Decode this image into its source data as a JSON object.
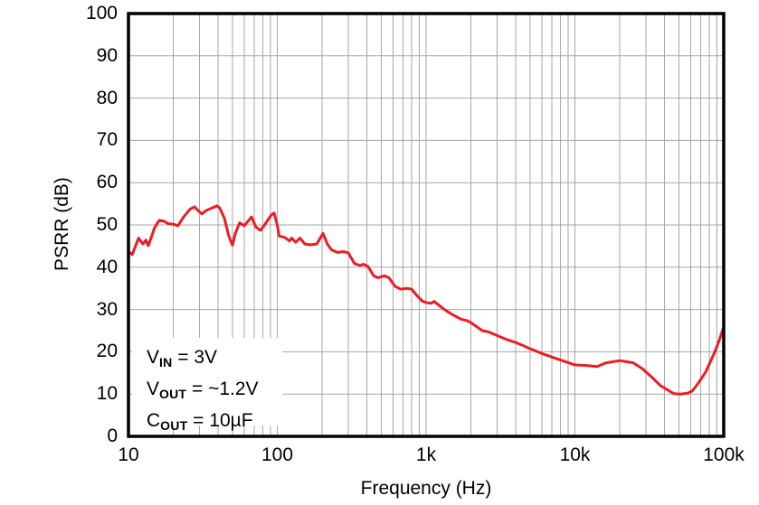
{
  "chart_data": {
    "type": "line",
    "title": "",
    "xlabel": "Frequency (Hz)",
    "ylabel": "PSRR (dB)",
    "x_scale": "log",
    "xlim": [
      10,
      100000
    ],
    "ylim": [
      0,
      100
    ],
    "grid": {
      "on": true,
      "color": "#A6A6A6",
      "minor_x": true,
      "major_y_step": 10
    },
    "axis_color": "#000000",
    "x_ticks": [
      {
        "value": 10,
        "label": "10"
      },
      {
        "value": 100,
        "label": "100"
      },
      {
        "value": 1000,
        "label": "1k"
      },
      {
        "value": 10000,
        "label": "10k"
      },
      {
        "value": 100000,
        "label": "100k"
      }
    ],
    "y_ticks": [
      {
        "value": 0,
        "label": "0"
      },
      {
        "value": 10,
        "label": "10"
      },
      {
        "value": 20,
        "label": "20"
      },
      {
        "value": 30,
        "label": "30"
      },
      {
        "value": 40,
        "label": "40"
      },
      {
        "value": 50,
        "label": "50"
      },
      {
        "value": 60,
        "label": "60"
      },
      {
        "value": 70,
        "label": "70"
      },
      {
        "value": 80,
        "label": "80"
      },
      {
        "value": 90,
        "label": "90"
      },
      {
        "value": 100,
        "label": "100"
      }
    ],
    "series": [
      {
        "name": "PSRR",
        "color": "#ED1C24",
        "points": [
          [
            10,
            43.7
          ],
          [
            10.6,
            43.0
          ],
          [
            11.7,
            46.9
          ],
          [
            12.5,
            45.5
          ],
          [
            13.1,
            46.4
          ],
          [
            13.6,
            45.1
          ],
          [
            15,
            49.4
          ],
          [
            16.1,
            51.1
          ],
          [
            17.3,
            50.9
          ],
          [
            18.5,
            50.3
          ],
          [
            20,
            50.2
          ],
          [
            21.5,
            49.8
          ],
          [
            23.5,
            51.9
          ],
          [
            25.9,
            53.7
          ],
          [
            27.8,
            54.3
          ],
          [
            29.8,
            53.2
          ],
          [
            31.1,
            52.6
          ],
          [
            33.3,
            53.4
          ],
          [
            35.8,
            53.9
          ],
          [
            39.4,
            54.5
          ],
          [
            41.1,
            54.0
          ],
          [
            44.1,
            51.6
          ],
          [
            47.3,
            47.3
          ],
          [
            50,
            45.2
          ],
          [
            52.2,
            48.0
          ],
          [
            55.9,
            50.5
          ],
          [
            60,
            49.8
          ],
          [
            67.1,
            51.9
          ],
          [
            71.9,
            49.5
          ],
          [
            77.2,
            48.7
          ],
          [
            82.8,
            50.2
          ],
          [
            91.3,
            52.4
          ],
          [
            95.2,
            52.8
          ],
          [
            100,
            50.0
          ],
          [
            103,
            47.4
          ],
          [
            113,
            47.0
          ],
          [
            121,
            46.2
          ],
          [
            125,
            46.9
          ],
          [
            133,
            45.9
          ],
          [
            142,
            46.9
          ],
          [
            153,
            45.5
          ],
          [
            167,
            45.3
          ],
          [
            184,
            45.5
          ],
          [
            203,
            48.0
          ],
          [
            217,
            45.5
          ],
          [
            232,
            44.1
          ],
          [
            254,
            43.5
          ],
          [
            280,
            43.7
          ],
          [
            300,
            43.4
          ],
          [
            330,
            40.9
          ],
          [
            360,
            40.4
          ],
          [
            379,
            40.7
          ],
          [
            407,
            40.2
          ],
          [
            444,
            38.0
          ],
          [
            476,
            37.5
          ],
          [
            525,
            38.0
          ],
          [
            563,
            37.5
          ],
          [
            619,
            35.5
          ],
          [
            676,
            34.8
          ],
          [
            745,
            35.0
          ],
          [
            799,
            34.8
          ],
          [
            878,
            33.1
          ],
          [
            942,
            32.0
          ],
          [
            1010,
            31.6
          ],
          [
            1083,
            31.5
          ],
          [
            1134,
            31.9
          ],
          [
            1305,
            30.2
          ],
          [
            1500,
            28.8
          ],
          [
            1726,
            27.7
          ],
          [
            1878,
            27.4
          ],
          [
            2000,
            26.9
          ],
          [
            2280,
            25.5
          ],
          [
            2382,
            25.0
          ],
          [
            2627,
            24.7
          ],
          [
            3020,
            23.8
          ],
          [
            3475,
            22.9
          ],
          [
            4000,
            22.2
          ],
          [
            4598,
            21.3
          ],
          [
            5000,
            20.7
          ],
          [
            5289,
            20.4
          ],
          [
            6086,
            19.5
          ],
          [
            7507,
            18.4
          ],
          [
            10000,
            16.9
          ],
          [
            12250,
            16.7
          ],
          [
            14090,
            16.5
          ],
          [
            16210,
            17.4
          ],
          [
            20000,
            17.9
          ],
          [
            24660,
            17.4
          ],
          [
            28380,
            16.0
          ],
          [
            32640,
            14.1
          ],
          [
            37540,
            12.0
          ],
          [
            43180,
            10.7
          ],
          [
            46320,
            10.1
          ],
          [
            51080,
            10.0
          ],
          [
            57130,
            10.2
          ],
          [
            61270,
            10.7
          ],
          [
            65720,
            12.0
          ],
          [
            75600,
            15.2
          ],
          [
            86940,
            19.9
          ],
          [
            93240,
            22.7
          ],
          [
            100000,
            25.9
          ]
        ]
      }
    ],
    "annotations": [
      {
        "var": "V",
        "sub": "IN",
        "rest": " = 3V"
      },
      {
        "var": "V",
        "sub": "OUT",
        "rest": " = ~1.2V"
      },
      {
        "var": "C",
        "sub": "OUT",
        "rest": " = 10µF"
      }
    ]
  }
}
